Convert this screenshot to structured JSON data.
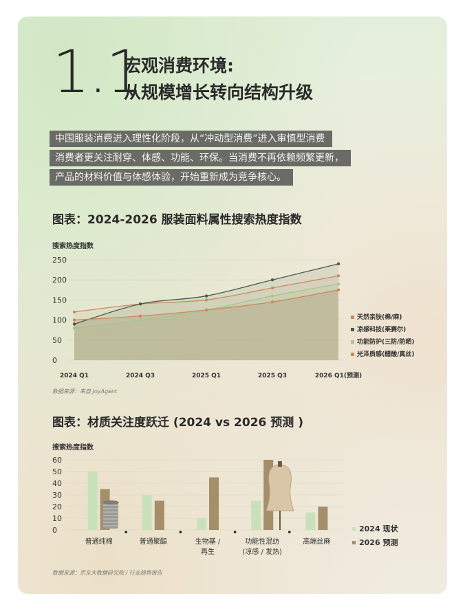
{
  "header": {
    "section_number": "1.1",
    "title_line1": "宏观消费环境:",
    "title_line2": "从规模增长转向结构升级"
  },
  "intro_lines": [
    "中国服装消费进入理性化阶段，从“冲动型消费”进入审慎型消费",
    "消费者更关注耐穿、体感、功能、环保。当消费不再依赖频繁更新，",
    "产品的材料价值与体感体验，开始重新成为竞争核心。"
  ],
  "chart1": {
    "heading": "图表：2024-2026 服装面料属性搜索热度指数",
    "source": "数据来源：来自 JoyAgent"
  },
  "chart2": {
    "heading": "图表：材质关注度跃迁 (2024 vs 2026 预测 )",
    "source": "数据来源：京东大数据研究院 / 行业趋势报告"
  },
  "colors": {
    "dark": "#4b5a4a",
    "green": "#a3c78d",
    "tan": "#a48f6a",
    "orange": "#c98a5e",
    "light_green": "#c9e1bb",
    "highlight_bg": "#6a6a66"
  },
  "chart_data": [
    {
      "type": "line",
      "ylabel": "搜索热度指数",
      "x": [
        "2024 Q1",
        "2024 Q3",
        "2025 Q1",
        "2025 Q3",
        "2026 Q1(预测)"
      ],
      "ylim": [
        0,
        250
      ],
      "yticks": [
        0,
        50,
        100,
        150,
        200,
        250
      ],
      "legend_position": "right",
      "series": [
        {
          "name": "天然亲肤(棉/麻)",
          "color": "#c98a5e",
          "values": [
            120,
            140,
            150,
            180,
            210
          ]
        },
        {
          "name": "凉感科技(莱赛尔)",
          "color": "#4b5a4a",
          "values": [
            90,
            140,
            160,
            200,
            240
          ]
        },
        {
          "name": "功能防护(三防/防晒)",
          "color": "#a3c78d",
          "values": [
            80,
            100,
            125,
            160,
            190
          ]
        },
        {
          "name": "光泽质感(醋酸/真丝)",
          "color": "#c98a5e",
          "values": [
            100,
            110,
            125,
            145,
            175
          ]
        }
      ]
    },
    {
      "type": "bar",
      "ylabel": "搜索热度指数",
      "categories": [
        "普通纯棉",
        "普通聚酯",
        "生物基 / 再生",
        "功能性混纺 (凉感 / 发热)",
        "高端丝麻"
      ],
      "ylim": [
        0,
        60
      ],
      "yticks": [
        0,
        10,
        20,
        30,
        40,
        50,
        60
      ],
      "legend_position": "right",
      "series": [
        {
          "name": "2024 现状",
          "color": "#c9e1bb",
          "values": [
            50,
            30,
            10,
            25,
            15
          ]
        },
        {
          "name": "2026 预测",
          "color": "#a48f6a",
          "values": [
            35,
            25,
            45,
            60,
            20
          ]
        }
      ]
    }
  ]
}
